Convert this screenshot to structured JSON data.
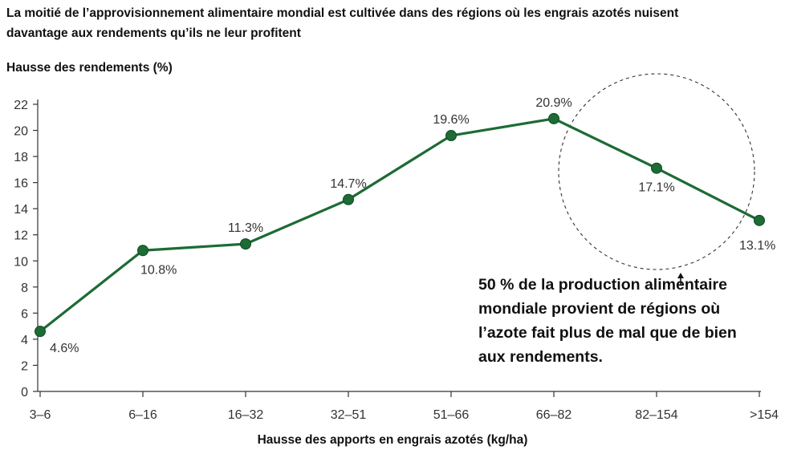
{
  "chart_data": {
    "type": "line",
    "title": "La moitié de l’approvisionnement alimentaire mondial est cultivée dans des régions où les engrais azotés nuisent davantage aux rendements qu’ils ne leur profitent",
    "ylabel": "Hausse des rendements (%)",
    "xlabel": "Hausse des apports en engrais azotés (kg/ha)",
    "categories": [
      "3–6",
      "6–16",
      "16–32",
      "32–51",
      "51–66",
      "66–82",
      "82–154",
      ">154"
    ],
    "values": [
      4.6,
      10.8,
      11.3,
      14.7,
      19.6,
      20.9,
      17.1,
      13.1
    ],
    "data_labels": [
      "4.6%",
      "10.8%",
      "11.3%",
      "14.7%",
      "19.6%",
      "20.9%",
      "17.1%",
      "13.1%"
    ],
    "ylim": [
      0,
      22
    ],
    "yticks": [
      0,
      2,
      4,
      6,
      8,
      10,
      12,
      14,
      16,
      18,
      20,
      22
    ],
    "grid": false,
    "annotation": "50 % de la production alimentaire mondiale provient de régions où l’azote fait plus de mal que de bien aux rendements.",
    "colors": {
      "line": "#1d6b35",
      "marker": "#1d6b35",
      "axis": "#333333",
      "circle": "#333333"
    }
  }
}
